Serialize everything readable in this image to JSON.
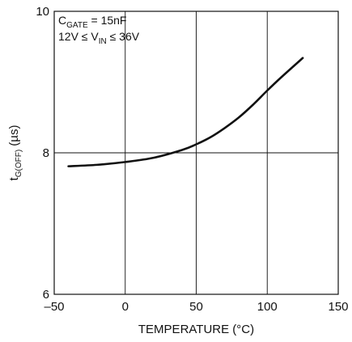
{
  "chart_data": {
    "type": "line",
    "xlabel": "TEMPERATURE (°C)",
    "ylabel": {
      "main": "t",
      "sub": "G(OFF)",
      "unit": " (µs)"
    },
    "xlim": [
      -50,
      150
    ],
    "ylim": [
      6,
      10
    ],
    "x_ticks": [
      "–50",
      "0",
      "50",
      "100",
      "150"
    ],
    "y_ticks": [
      "6",
      "8",
      "10"
    ],
    "grid": true,
    "annotations": {
      "line1": {
        "main": "C",
        "sub": "GATE",
        "rest": " = 15nF"
      },
      "line2": {
        "pre": "12V ≤ V",
        "sub": "IN",
        "rest": " ≤ 36V"
      }
    },
    "series": [
      {
        "x": [
          -40,
          -20,
          0,
          20,
          40,
          50,
          60,
          70,
          80,
          90,
          100,
          110,
          125
        ],
        "y": [
          7.81,
          7.83,
          7.87,
          7.93,
          8.04,
          8.12,
          8.22,
          8.35,
          8.5,
          8.68,
          8.88,
          9.07,
          9.34
        ]
      }
    ],
    "colors": {
      "line": "#111111",
      "grid": "#111111"
    }
  }
}
